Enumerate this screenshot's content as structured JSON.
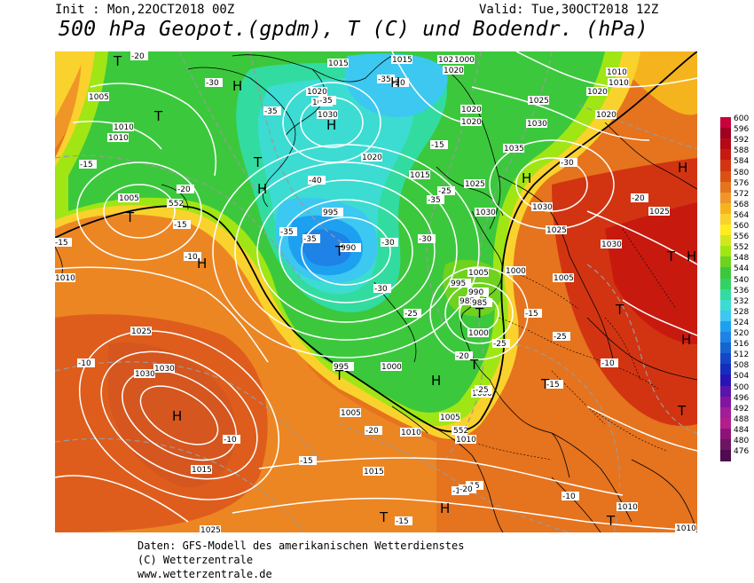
{
  "header": {
    "init": "Init : Mon,22OCT2018 00Z",
    "valid": "Valid: Tue,30OCT2018 12Z",
    "title": "500 hPa Geopot.(gpdm), T (C) und Bodendr. (hPa)"
  },
  "legend": {
    "values": [
      "600",
      "596",
      "592",
      "588",
      "584",
      "580",
      "576",
      "572",
      "568",
      "564",
      "560",
      "556",
      "552",
      "548",
      "544",
      "540",
      "536",
      "532",
      "528",
      "524",
      "520",
      "516",
      "512",
      "508",
      "504",
      "500",
      "496",
      "492",
      "488",
      "484",
      "480",
      "476"
    ],
    "colors": [
      "#c8003c",
      "#a00022",
      "#b40a16",
      "#c8190f",
      "#d23412",
      "#dc5014",
      "#e6731e",
      "#f09628",
      "#f5b41e",
      "#fad22d",
      "#ffeb1e",
      "#d2e61e",
      "#a0e614",
      "#6ed21e",
      "#3cc83c",
      "#32d264",
      "#32dca0",
      "#3cdcd2",
      "#3cc8f0",
      "#1ea0f0",
      "#1e82e6",
      "#1464d2",
      "#1446c8",
      "#142dbe",
      "#2814b4",
      "#5a14aa",
      "#8214a0",
      "#a01e96",
      "#b41e8c",
      "#8c1478",
      "#6e1464",
      "#500a50"
    ]
  },
  "map": {
    "pressure_labels": [
      "1015",
      "1005",
      "1010",
      "1010",
      "1005",
      "1020",
      "1025",
      "1030",
      "1020",
      "1020",
      "1020",
      "1025",
      "1035",
      "1030",
      "1020",
      "1025",
      "1030",
      "995",
      "990",
      "985",
      "1000",
      "1005",
      "1015",
      "1000",
      "995",
      "990",
      "985",
      "995",
      "1000",
      "1005",
      "1010",
      "1025",
      "1030",
      "1030",
      "1015",
      "1010",
      "1025",
      "1020",
      "1030",
      "1005",
      "1010",
      "1015",
      "1010",
      "1010",
      "1025",
      "1030",
      "1015",
      "1025",
      "1000",
      "1005",
      "1010",
      "1010",
      "1000",
      "1020",
      "1025"
    ],
    "temp_labels": [
      "-20",
      "-30",
      "-35",
      "-35",
      "-35",
      "-40",
      "-35",
      "-35",
      "-30",
      "-25",
      "-20",
      "-15",
      "-30",
      "-30",
      "-25",
      "-20",
      "-15",
      "-10",
      "-10",
      "-10",
      "-15",
      "-20",
      "-15",
      "-10",
      "-15",
      "-20",
      "-25",
      "-30",
      "-35",
      "-20",
      "-25",
      "-15",
      "-10",
      "-25",
      "-20",
      "-15",
      "-10",
      "-15",
      "-15"
    ],
    "contour_label_552": "552",
    "highs": [
      "H",
      "H",
      "H",
      "H",
      "H",
      "H",
      "H",
      "H",
      "H",
      "H",
      "H",
      "H"
    ],
    "lows": [
      "T",
      "T",
      "T",
      "T",
      "T",
      "T",
      "T",
      "T",
      "T",
      "T",
      "T",
      "T",
      "T",
      "T"
    ]
  },
  "footer": {
    "line1": "Daten: GFS-Modell des amerikanischen Wetterdienstes",
    "line2": "(C) Wetterzentrale",
    "line3": "www.wetterzentrale.de"
  }
}
